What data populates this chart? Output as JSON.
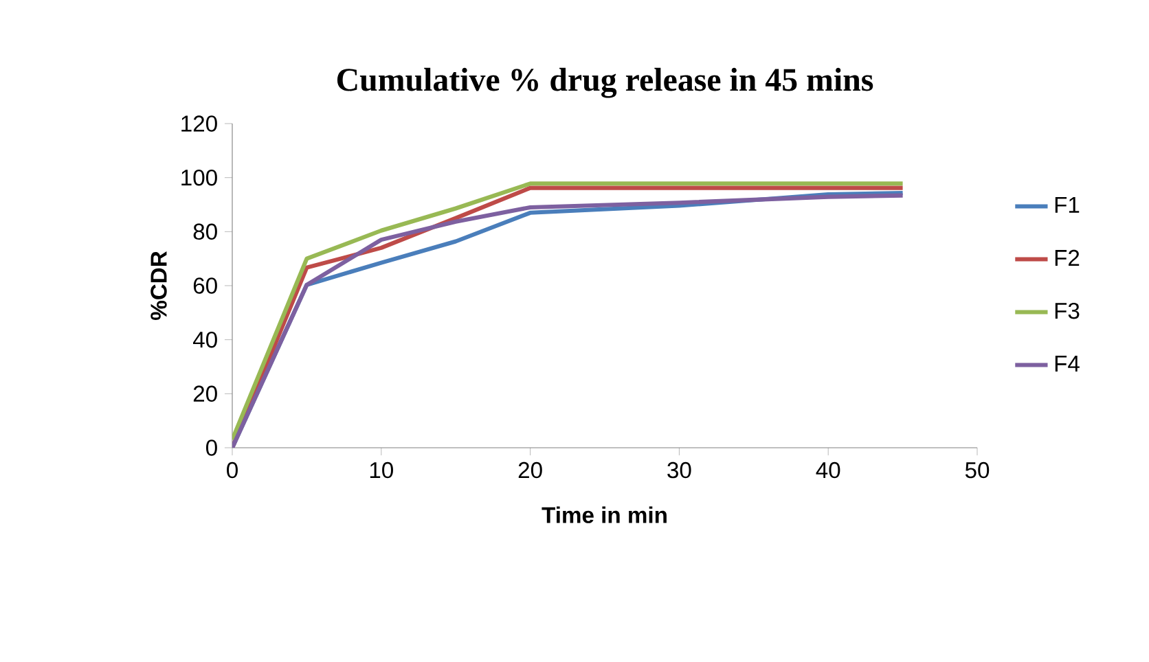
{
  "chart_data": {
    "type": "line",
    "title": "Cumulative % drug release in 45 mins",
    "xlabel": "Time in min",
    "ylabel": "%CDR",
    "x": [
      0,
      5,
      10,
      15,
      20,
      30,
      40,
      45
    ],
    "series": [
      {
        "name": "F1",
        "color": "#4a7ebb",
        "values": [
          0,
          60.3,
          68.5,
          76.4,
          87,
          89.6,
          93.8,
          94.3
        ]
      },
      {
        "name": "F2",
        "color": "#be4b48",
        "values": [
          0,
          66.7,
          74,
          85,
          96.2,
          96.2,
          96.2,
          96.2
        ]
      },
      {
        "name": "F3",
        "color": "#98b954",
        "values": [
          3,
          70,
          80.4,
          88.6,
          97.8,
          97.8,
          97.8,
          97.8
        ]
      },
      {
        "name": "F4",
        "color": "#7d60a0",
        "values": [
          0,
          60.3,
          77,
          83.7,
          89,
          90.7,
          92.9,
          93.4
        ]
      }
    ],
    "xlim": [
      0,
      50
    ],
    "xticks": [
      0,
      10,
      20,
      30,
      40,
      50
    ],
    "ylim": [
      0,
      120
    ],
    "yticks": [
      0,
      20,
      40,
      60,
      80,
      100,
      120
    ],
    "grid": false,
    "legend": "right",
    "marker": "none",
    "line_style": "solid"
  }
}
